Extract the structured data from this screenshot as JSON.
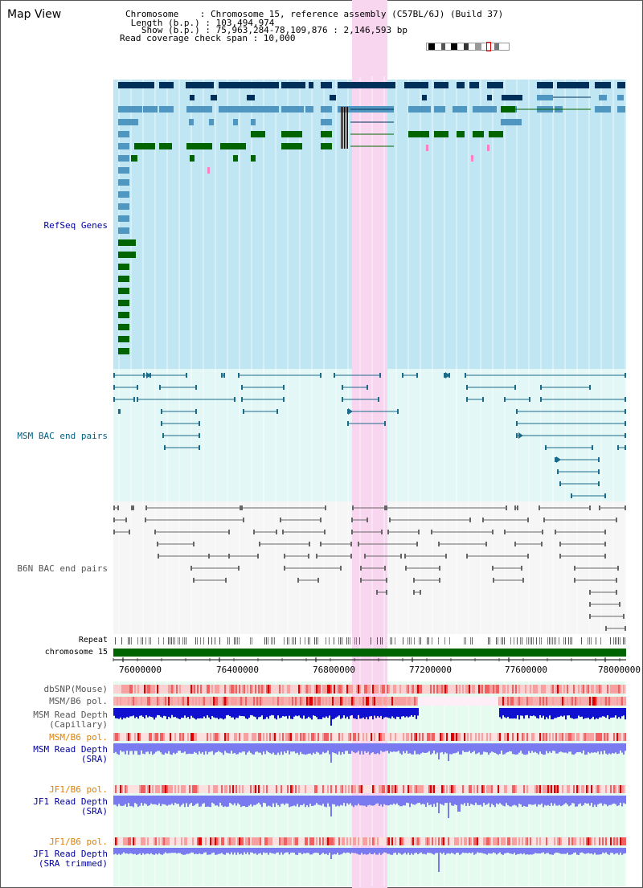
{
  "app": {
    "title": "Map View"
  },
  "header": {
    "chromosome_line": "Chromosome    : Chromosome 15, reference assembly (C57BL/6J) (Build 37)",
    "length_line": " Length (b.p.) : 103,494,974",
    "show_line": "   Show (b.p.) : 75,963,284-78,109,876 : 2,146,593 bp",
    "coverage_line": "Read coverage check span : 10,000"
  },
  "tracks": {
    "refseq": "RefSeq Genes",
    "msm_bac": "MSM BAC end pairs",
    "b6n_bac": "B6N BAC end pairs",
    "repeat": "Repeat",
    "chromosome": "chromosome 15",
    "dbsnp": "dbSNP(Mouse)",
    "msm_b6_pol_cap": "MSM/B6 pol.",
    "msm_read_depth_cap_1": "MSM Read Depth",
    "msm_read_depth_cap_2": "(Capillary)",
    "msm_b6_pol_sra": "MSM/B6 pol.",
    "msm_read_depth_sra_1": "MSM Read Depth",
    "msm_read_depth_sra_2": "(SRA)",
    "jf1_b6_pol_sra": "JF1/B6 pol.",
    "jf1_read_depth_sra_1": "JF1 Read Depth",
    "jf1_read_depth_sra_2": "(SRA)",
    "jf1_b6_pol_trim": "JF1/B6 pol.",
    "jf1_read_depth_trim_1": "JF1 Read Depth",
    "jf1_read_depth_trim_2": "(SRA trimmed)"
  },
  "axis": {
    "ticks": [
      "76000000",
      "76400000",
      "76800000",
      "77200000",
      "77600000",
      "78000000"
    ]
  },
  "colors": {
    "refseq_bg": "#bfe6f2",
    "bac_bg": "#e3f7f7",
    "b6n_bg": "#f3f3f3",
    "dark_gene": "#00305a",
    "mid_gene": "#4f96c0",
    "green_gene": "#006400",
    "highlight": "#f9d6f0",
    "depth_blue": "#1010d0",
    "depth_light": "#7a7af0"
  }
}
